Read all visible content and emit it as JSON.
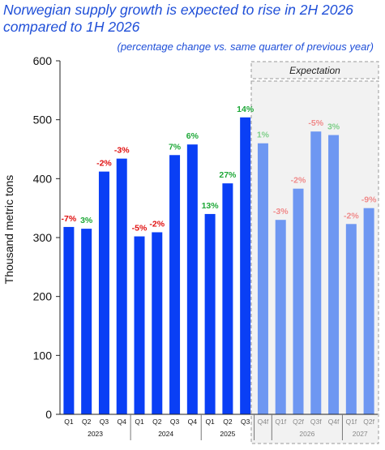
{
  "title": "Norwegian supply growth is expected to rise in 2H 2026 compared to 1H 2026",
  "subtitle": "(percentage change vs. same quarter of previous year)",
  "colors": {
    "actual_bar": "#0a3ff5",
    "forecast_bar": "#6e97f2",
    "positive_label": "#1ea838",
    "negative_label": "#e01010",
    "positive_label_faded": "#7fcf8a",
    "negative_label_faded": "#f08a8a",
    "title": "#1f4fd8"
  },
  "chart_data": {
    "type": "bar",
    "ylabel": "Thousand metric tons",
    "ylim": [
      0,
      600
    ],
    "yticks": [
      0,
      100,
      200,
      300,
      400,
      500,
      600
    ],
    "grid": false,
    "expectation_label": "Expectation",
    "bars": [
      {
        "label": "Q1",
        "year": "2023",
        "value": 318,
        "change": "-7%",
        "forecast": false
      },
      {
        "label": "Q2",
        "year": "2023",
        "value": 315,
        "change": "3%",
        "forecast": false
      },
      {
        "label": "Q3",
        "year": "2023",
        "value": 412,
        "change": "-2%",
        "forecast": false
      },
      {
        "label": "Q4",
        "year": "2023",
        "value": 434,
        "change": "-3%",
        "forecast": false
      },
      {
        "label": "Q1",
        "year": "2024",
        "value": 302,
        "change": "-5%",
        "forecast": false
      },
      {
        "label": "Q2",
        "year": "2024",
        "value": 309,
        "change": "-2%",
        "forecast": false
      },
      {
        "label": "Q3",
        "year": "2024",
        "value": 440,
        "change": "7%",
        "forecast": false
      },
      {
        "label": "Q4",
        "year": "2024",
        "value": 458,
        "change": "6%",
        "forecast": false
      },
      {
        "label": "Q1",
        "year": "2025",
        "value": 340,
        "change": "13%",
        "forecast": false
      },
      {
        "label": "Q2",
        "year": "2025",
        "value": 392,
        "change": "27%",
        "forecast": false
      },
      {
        "label": "Q3",
        "year": "2025",
        "value": 504,
        "change": "14%",
        "forecast": false
      },
      {
        "label": "Q4f",
        "year": "2025",
        "value": 460,
        "change": "1%",
        "forecast": true
      },
      {
        "label": "Q1f",
        "year": "2026",
        "value": 330,
        "change": "-3%",
        "forecast": true
      },
      {
        "label": "Q2f",
        "year": "2026",
        "value": 383,
        "change": "-2%",
        "forecast": true
      },
      {
        "label": "Q3f",
        "year": "2026",
        "value": 480,
        "change": "-5%",
        "forecast": true
      },
      {
        "label": "Q4f",
        "year": "2026",
        "value": 474,
        "change": "3%",
        "forecast": true
      },
      {
        "label": "Q1f",
        "year": "2027",
        "value": 323,
        "change": "-2%",
        "forecast": true
      },
      {
        "label": "Q2f",
        "year": "2027",
        "value": 350,
        "change": "-9%",
        "forecast": true
      }
    ],
    "year_labels": [
      "2023",
      "2024",
      "2025",
      "2026",
      "2027"
    ]
  }
}
